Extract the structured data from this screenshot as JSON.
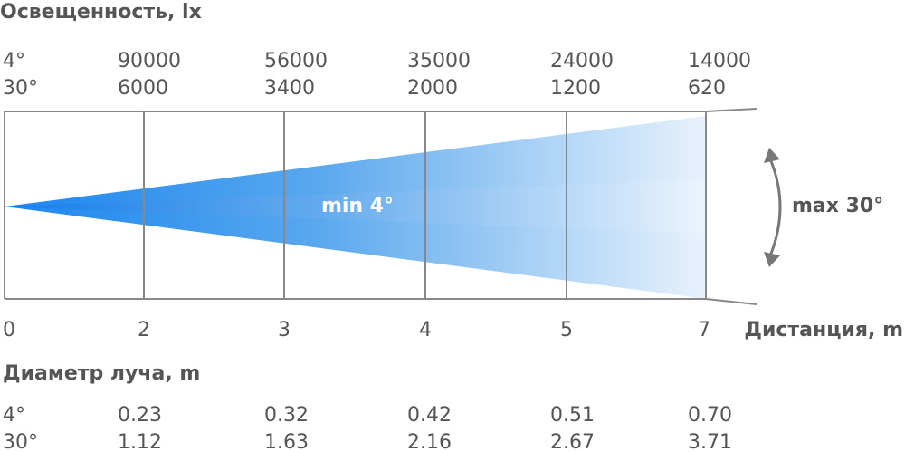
{
  "illuminance": {
    "title": "Освещенность, lx",
    "rows": [
      {
        "angle": "4°",
        "values": [
          "90000",
          "56000",
          "35000",
          "24000",
          "14000"
        ]
      },
      {
        "angle": "30°",
        "values": [
          "6000",
          "3400",
          "2000",
          "1200",
          "620"
        ]
      }
    ]
  },
  "beam": {
    "min_label": "min 4°",
    "max_label": "max 30°"
  },
  "distance": {
    "label": "Дистанция, m",
    "ticks": [
      "0",
      "2",
      "3",
      "4",
      "5",
      "7"
    ]
  },
  "diameter": {
    "title": "Диаметр луча, m",
    "rows": [
      {
        "angle": "4°",
        "values": [
          "0.23",
          "0.32",
          "0.42",
          "0.51",
          "0.70"
        ]
      },
      {
        "angle": "30°",
        "values": [
          "1.12",
          "1.63",
          "2.16",
          "2.67",
          "3.71"
        ]
      }
    ]
  }
}
